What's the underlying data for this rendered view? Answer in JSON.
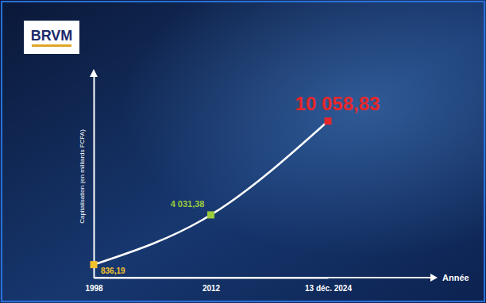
{
  "logo": {
    "text": "BRVM"
  },
  "chart_data": {
    "type": "line",
    "x_label": "Année",
    "y_label": "Capitalisation (en milliards FCFA)",
    "categories": [
      "1998",
      "2012",
      "13 déc. 2024"
    ],
    "values": [
      836.19,
      4031.38,
      10058.83
    ],
    "value_labels": [
      "836,19",
      "4 031,38",
      "10 058,83"
    ],
    "colors": [
      "#f2c12e",
      "#9ccc3c",
      "#e8262a"
    ],
    "color": "#ffffff",
    "marker": "square",
    "ylim": [
      0,
      13000
    ],
    "tick_labels": "x",
    "data_labels": true,
    "grid": false
  }
}
